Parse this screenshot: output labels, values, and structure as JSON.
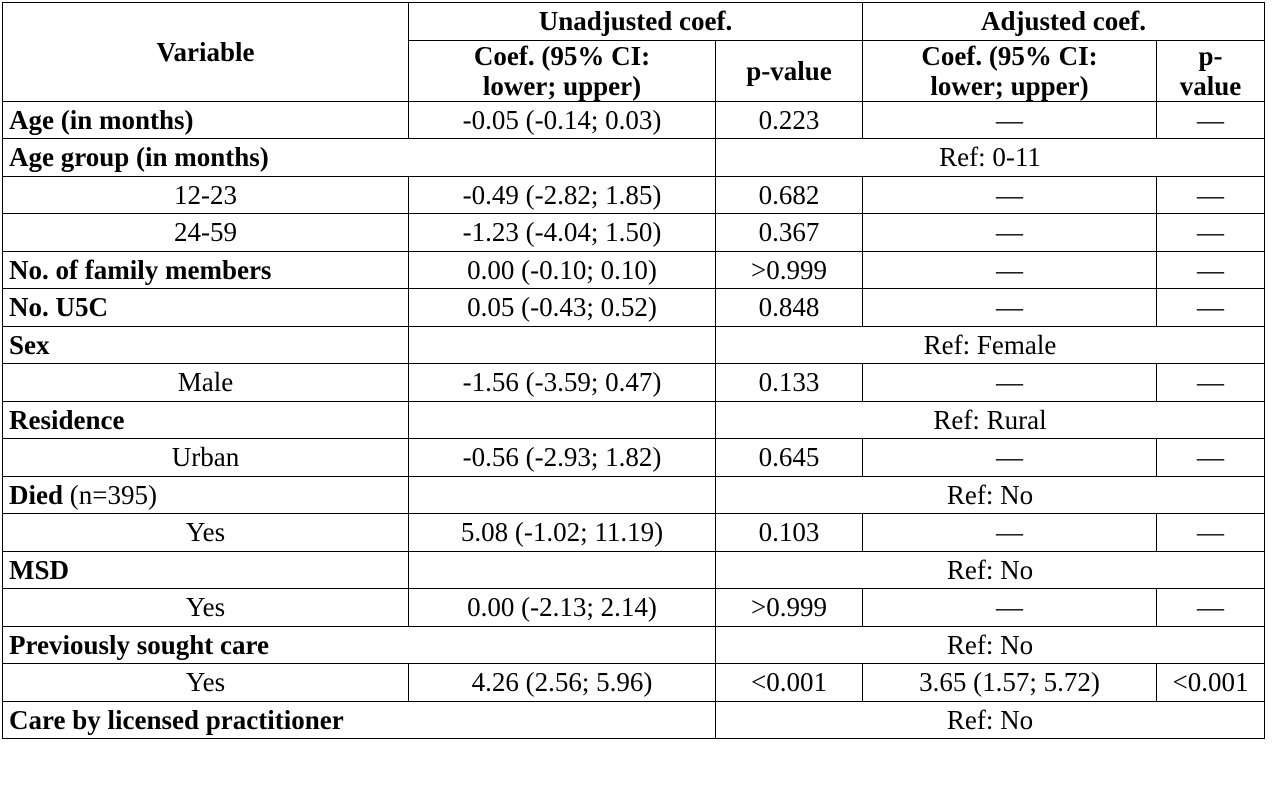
{
  "header": {
    "variable": "Variable",
    "unadjusted": "Unadjusted coef.",
    "adjusted": "Adjusted coef.",
    "coef_line1": "Coef. (95% CI:",
    "coef_line2": "lower; upper)",
    "pvalue": "p-value",
    "p_line1": "p-",
    "p_line2": "value"
  },
  "rows": [
    {
      "label": "Age (in months)",
      "coef": "-0.05 (-0.14; 0.03)",
      "p": "0.223",
      "adj": "—",
      "adjp": "—"
    },
    {
      "label": "Age group (in months)",
      "ref": "Ref: 0-11"
    },
    {
      "label": "12-23",
      "coef": "-0.49 (-2.82; 1.85)",
      "p": "0.682",
      "adj": "—",
      "adjp": "—"
    },
    {
      "label": "24-59",
      "coef": "-1.23 (-4.04; 1.50)",
      "p": "0.367",
      "adj": "—",
      "adjp": "—"
    },
    {
      "label": "No. of family members",
      "coef": "0.00 (-0.10; 0.10)",
      "p": ">0.999",
      "adj": "—",
      "adjp": "—"
    },
    {
      "label": "No. U5C",
      "coef": "0.05 (-0.43; 0.52)",
      "p": "0.848",
      "adj": "—",
      "adjp": "—"
    },
    {
      "label": "Sex",
      "ref": "Ref: Female"
    },
    {
      "label": "Male",
      "coef": "-1.56 (-3.59; 0.47)",
      "p": "0.133",
      "adj": "—",
      "adjp": "—"
    },
    {
      "label": "Residence",
      "ref": "Ref: Rural"
    },
    {
      "label": "Urban",
      "coef": "-0.56 (-2.93; 1.82)",
      "p": "0.645",
      "adj": "—",
      "adjp": "—"
    },
    {
      "label": "Died",
      "label_suffix": " (n=395)",
      "ref": "Ref: No"
    },
    {
      "label": "Yes",
      "coef": "5.08 (-1.02; 11.19)",
      "p": "0.103",
      "adj": "—",
      "adjp": "—"
    },
    {
      "label": "MSD",
      "ref": "Ref: No"
    },
    {
      "label": "Yes",
      "coef": "0.00 (-2.13; 2.14)",
      "p": ">0.999",
      "adj": "—",
      "adjp": "—"
    },
    {
      "label": "Previously sought care",
      "ref": "Ref: No"
    },
    {
      "label": "Yes",
      "coef": "4.26 (2.56; 5.96)",
      "p": "<0.001",
      "adj": "3.65 (1.57; 5.72)",
      "adjp": "<0.001"
    },
    {
      "label": "Care by licensed practitioner",
      "ref": "Ref: No"
    }
  ]
}
